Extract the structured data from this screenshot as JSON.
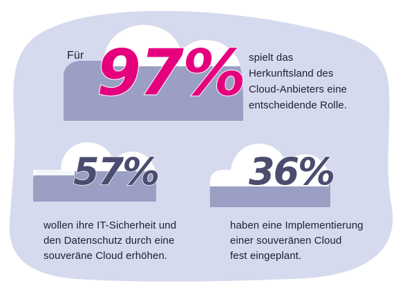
{
  "colors": {
    "background_blob": "#d6daee",
    "cloud_fill": "#9a9fc3",
    "cloud_top": "#ffffff",
    "accent": "#e5007e",
    "secondary_number": "#4b4c6e",
    "text": "#1c1e33"
  },
  "top": {
    "prefix": "Für",
    "value": "97%",
    "lines": [
      "spielt das",
      "Herkunftsland des",
      "Cloud-Anbieters eine",
      "entscheidende Rolle."
    ]
  },
  "left": {
    "value": "57%",
    "lines": [
      "wollen ihre IT-Sicherheit und",
      "den Datenschutz durch eine",
      "souveräne Cloud erhöhen."
    ]
  },
  "right": {
    "value": "36%",
    "lines": [
      "haben eine Implementierung",
      "einer souveränen Cloud",
      "fest eingeplant."
    ]
  }
}
